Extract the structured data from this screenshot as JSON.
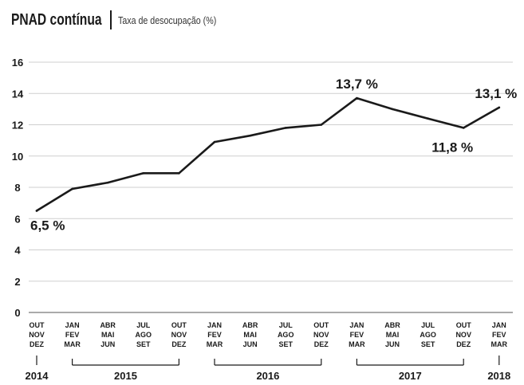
{
  "chart_data": {
    "type": "line",
    "title": "PNAD contínua",
    "subtitle": "Taxa de desocupação (%)",
    "ylim": [
      0,
      16
    ],
    "yticks": [
      0,
      2,
      4,
      6,
      8,
      10,
      12,
      14,
      16
    ],
    "grid": true,
    "categories": [
      "OUT NOV DEZ",
      "JAN FEV MAR",
      "ABR MAI JUN",
      "JUL AGO SET",
      "OUT NOV DEZ",
      "JAN FEV MAR",
      "ABR MAI JUN",
      "JUL AGO SET",
      "OUT NOV DEZ",
      "JAN FEV MAR",
      "ABR MAI JUN",
      "JUL AGO SET",
      "OUT NOV DEZ",
      "JAN FEV MAR"
    ],
    "category_lines": [
      [
        "OUT",
        "NOV",
        "DEZ"
      ],
      [
        "JAN",
        "FEV",
        "MAR"
      ],
      [
        "ABR",
        "MAI",
        "JUN"
      ],
      [
        "JUL",
        "AGO",
        "SET"
      ],
      [
        "OUT",
        "NOV",
        "DEZ"
      ],
      [
        "JAN",
        "FEV",
        "MAR"
      ],
      [
        "ABR",
        "MAI",
        "JUN"
      ],
      [
        "JUL",
        "AGO",
        "SET"
      ],
      [
        "OUT",
        "NOV",
        "DEZ"
      ],
      [
        "JAN",
        "FEV",
        "MAR"
      ],
      [
        "ABR",
        "MAI",
        "JUN"
      ],
      [
        "JUL",
        "AGO",
        "SET"
      ],
      [
        "OUT",
        "NOV",
        "DEZ"
      ],
      [
        "JAN",
        "FEV",
        "MAR"
      ]
    ],
    "series": [
      {
        "values": [
          6.5,
          7.9,
          8.3,
          8.9,
          8.9,
          10.9,
          11.3,
          11.8,
          12.0,
          13.7,
          13.0,
          12.4,
          11.8,
          13.1
        ]
      }
    ],
    "annotations": [
      {
        "index": 0,
        "text": "6,5 %",
        "position": "below-right"
      },
      {
        "index": 9,
        "text": "13,7 %",
        "position": "above"
      },
      {
        "index": 12,
        "text": "11,8 %",
        "position": "below"
      },
      {
        "index": 13,
        "text": "13,1 %",
        "position": "above"
      }
    ],
    "year_groups": [
      {
        "label": "2014",
        "start": 0,
        "end": 0
      },
      {
        "label": "2015",
        "start": 1,
        "end": 4
      },
      {
        "label": "2016",
        "start": 5,
        "end": 8
      },
      {
        "label": "2017",
        "start": 9,
        "end": 12
      },
      {
        "label": "2018",
        "start": 13,
        "end": 13
      }
    ],
    "colors": {
      "line": "#1a1a1a",
      "grid": "#cfcfcf",
      "text": "#1a1a1a"
    }
  }
}
